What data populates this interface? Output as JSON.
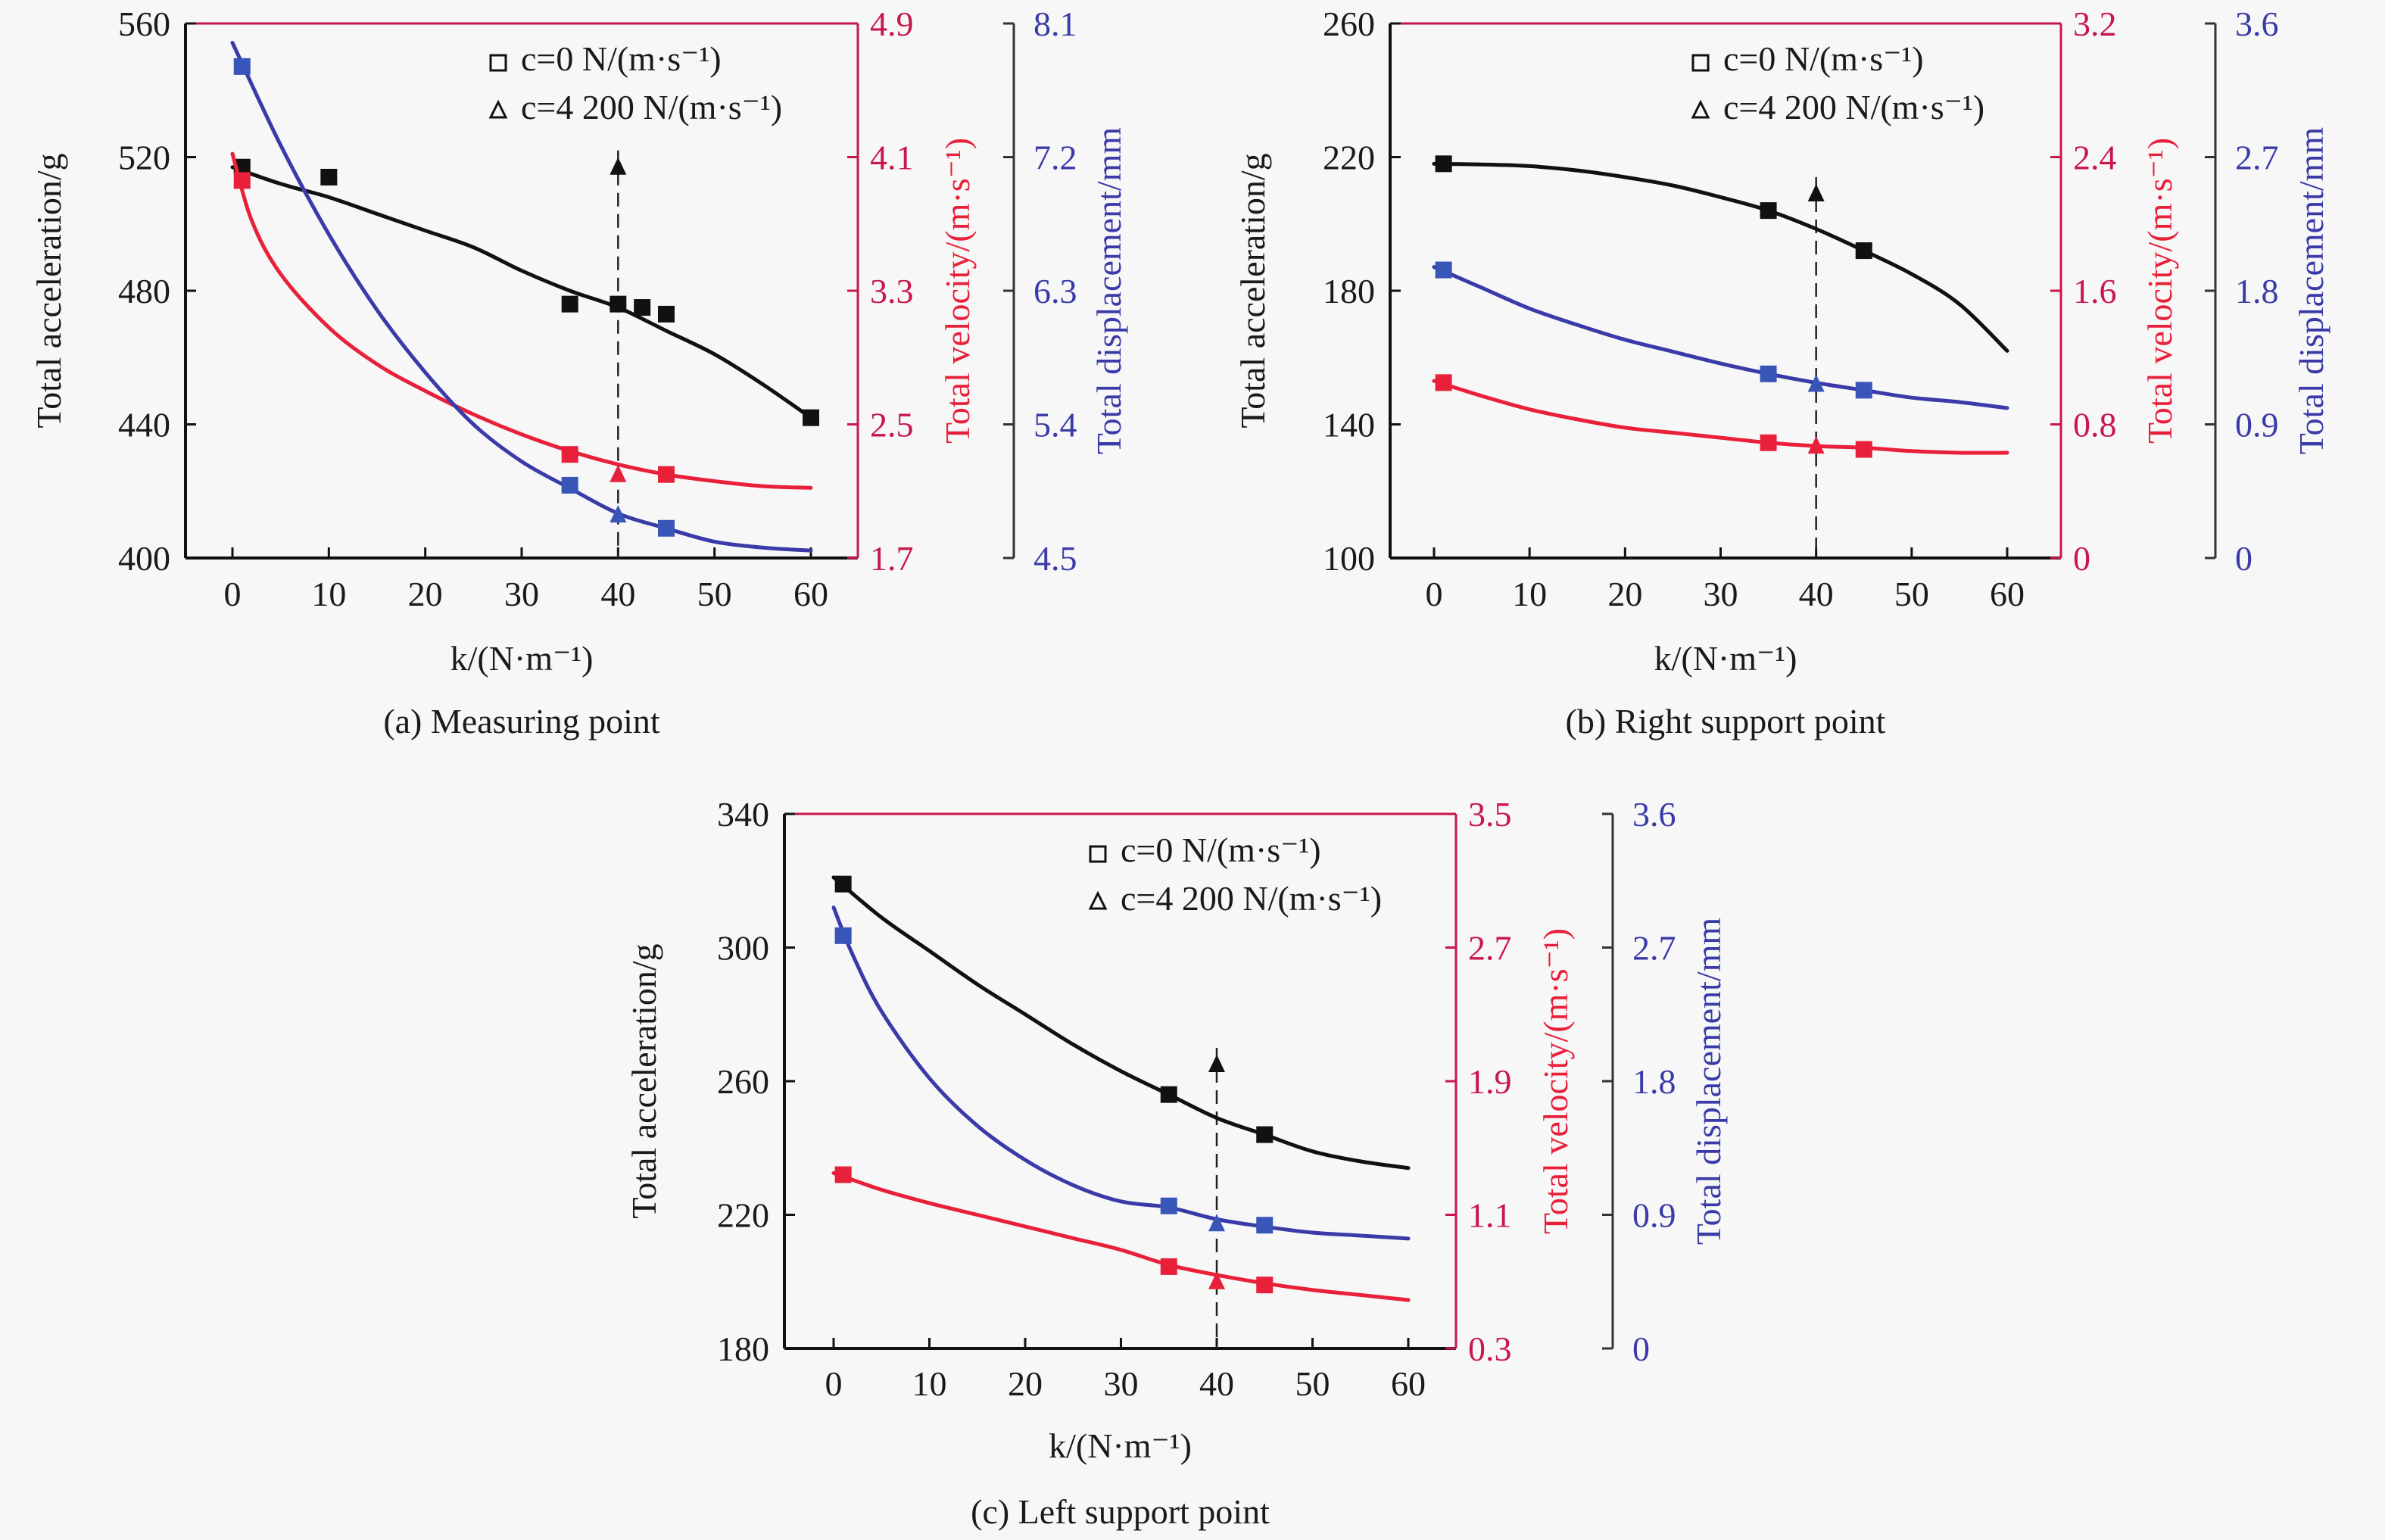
{
  "colors": {
    "acceleration": "#111111",
    "velocity": "#e8203a",
    "velocity_axis": "#c8174a",
    "displacement": "#3a3aa8",
    "displacement_marker": "#3856b8",
    "background": "#f7f7f7"
  },
  "legend": {
    "square_label": "c=0 N/(m·s⁻¹)",
    "triangle_label": "c=4 200 N/(m·s⁻¹)"
  },
  "chart_data": [
    {
      "id": "a",
      "type": "line",
      "title": "(a) Measuring point",
      "xlabel": "k/(N·m⁻¹)",
      "ylabel_left": "Total acceleration/g",
      "ylabel_right1": "Total velocity/(m·s⁻¹)",
      "ylabel_right2": "Total displacement/mm",
      "xlim": [
        0,
        60
      ],
      "xticks": [
        0,
        10,
        20,
        30,
        40,
        50,
        60
      ],
      "ylim_left": [
        400,
        560
      ],
      "yticks_left": [
        400,
        440,
        480,
        520,
        560
      ],
      "ylim_right1": [
        1.7,
        4.9
      ],
      "yticks_right1": [
        1.7,
        2.5,
        3.3,
        4.1,
        4.9
      ],
      "ylim_right2": [
        4.5,
        8.1
      ],
      "yticks_right2": [
        4.5,
        5.4,
        6.3,
        7.2,
        8.1
      ],
      "dashed_marker_x": 40,
      "legend_position": "top-right",
      "series": [
        {
          "name": "Total acceleration",
          "axis": "left",
          "color_key": "acceleration",
          "curve": {
            "x": [
              0,
              5,
              10,
              15,
              20,
              25,
              30,
              35,
              40,
              45,
              50,
              55,
              60
            ],
            "y": [
              517,
              512,
              508,
              503,
              498,
              493,
              486,
              480,
              475,
              468,
              461,
              452,
              442
            ]
          },
          "squares": {
            "x": [
              1,
              10,
              35,
              40,
              42.5,
              45,
              60
            ],
            "y": [
              517,
              514,
              476,
              476,
              475,
              473,
              442
            ]
          },
          "triangles": {
            "x": [
              40
            ],
            "y": [
              517
            ]
          }
        },
        {
          "name": "Total velocity",
          "axis": "right1",
          "color_key": "velocity",
          "curve": {
            "x": [
              0,
              2,
              5,
              10,
              15,
              20,
              25,
              30,
              35,
              40,
              45,
              50,
              55,
              60
            ],
            "y": [
              4.12,
              3.72,
              3.4,
              3.08,
              2.86,
              2.7,
              2.56,
              2.44,
              2.34,
              2.26,
              2.2,
              2.16,
              2.13,
              2.12
            ]
          },
          "squares": {
            "x": [
              1,
              35,
              45
            ],
            "y": [
              3.96,
              2.32,
              2.2
            ]
          },
          "triangles": {
            "x": [
              40
            ],
            "y": [
              2.2
            ]
          }
        },
        {
          "name": "Total displacement",
          "axis": "right2",
          "color_key": "displacement",
          "curve": {
            "x": [
              0,
              5,
              10,
              15,
              20,
              25,
              30,
              35,
              40,
              45,
              50,
              55,
              60
            ],
            "y": [
              7.97,
              7.28,
              6.68,
              6.17,
              5.75,
              5.4,
              5.15,
              4.97,
              4.8,
              4.7,
              4.61,
              4.57,
              4.55
            ]
          },
          "squares": {
            "x": [
              1,
              35,
              45
            ],
            "y": [
              7.81,
              4.99,
              4.7
            ]
          },
          "triangles": {
            "x": [
              40
            ],
            "y": [
              4.79
            ]
          }
        }
      ]
    },
    {
      "id": "b",
      "type": "line",
      "title": "(b) Right support point",
      "xlabel": "k/(N·m⁻¹)",
      "ylabel_left": "Total acceleration/g",
      "ylabel_right1": "Total velocity/(m·s⁻¹)",
      "ylabel_right2": "Total displacement/mm",
      "xlim": [
        0,
        60
      ],
      "xticks": [
        0,
        10,
        20,
        30,
        40,
        50,
        60
      ],
      "ylim_left": [
        100,
        260
      ],
      "yticks_left": [
        100,
        140,
        180,
        220,
        260
      ],
      "ylim_right1": [
        0,
        3.2
      ],
      "yticks_right1": [
        0,
        0.8,
        1.6,
        2.4,
        3.2
      ],
      "ylim_right2": [
        0,
        3.6
      ],
      "yticks_right2": [
        0,
        0.9,
        1.8,
        2.7,
        3.6
      ],
      "dashed_marker_x": 40,
      "legend_position": "top-right",
      "series": [
        {
          "name": "Total acceleration",
          "axis": "left",
          "color_key": "acceleration",
          "curve": {
            "x": [
              0,
              5,
              10,
              15,
              20,
              25,
              30,
              35,
              40,
              45,
              50,
              55,
              60
            ],
            "y": [
              218,
              217.8,
              217.3,
              216,
              214,
              211.5,
              208,
              204,
              198.5,
              192,
              185,
              176,
              162
            ]
          },
          "squares": {
            "x": [
              1,
              35,
              45
            ],
            "y": [
              218,
              204,
              192
            ]
          },
          "triangles": {
            "x": [
              40
            ],
            "y": [
              209
            ]
          }
        },
        {
          "name": "Total velocity",
          "axis": "right1",
          "color_key": "velocity",
          "curve": {
            "x": [
              0,
              5,
              10,
              15,
              20,
              25,
              30,
              35,
              40,
              45,
              50,
              55,
              60
            ],
            "y": [
              1.06,
              0.97,
              0.89,
              0.83,
              0.78,
              0.75,
              0.72,
              0.69,
              0.67,
              0.66,
              0.64,
              0.63,
              0.63
            ]
          },
          "squares": {
            "x": [
              1,
              35,
              45
            ],
            "y": [
              1.05,
              0.69,
              0.65
            ]
          },
          "triangles": {
            "x": [
              40
            ],
            "y": [
              0.67
            ]
          }
        },
        {
          "name": "Total displacement",
          "axis": "right2",
          "color_key": "displacement",
          "curve": {
            "x": [
              0,
              5,
              10,
              15,
              20,
              25,
              30,
              35,
              40,
              45,
              50,
              55,
              60
            ],
            "y": [
              1.96,
              1.82,
              1.68,
              1.57,
              1.47,
              1.39,
              1.31,
              1.24,
              1.18,
              1.13,
              1.08,
              1.05,
              1.01
            ]
          },
          "squares": {
            "x": [
              1,
              35,
              45
            ],
            "y": [
              1.94,
              1.24,
              1.13
            ]
          },
          "triangles": {
            "x": [
              40
            ],
            "y": [
              1.17
            ]
          }
        }
      ]
    },
    {
      "id": "c",
      "type": "line",
      "title": "(c) Left support point",
      "xlabel": "k/(N·m⁻¹)",
      "ylabel_left": "Total acceleration/g",
      "ylabel_right1": "Total velocity/(m·s⁻¹)",
      "ylabel_right2": "Total displacement/mm",
      "xlim": [
        0,
        60
      ],
      "xticks": [
        0,
        10,
        20,
        30,
        40,
        50,
        60
      ],
      "ylim_left": [
        180,
        340
      ],
      "yticks_left": [
        180,
        220,
        260,
        300,
        340
      ],
      "ylim_right1": [
        0.3,
        3.5
      ],
      "yticks_right1": [
        0.3,
        1.1,
        1.9,
        2.7,
        3.5
      ],
      "ylim_right2": [
        0,
        3.6
      ],
      "yticks_right2": [
        0,
        0.9,
        1.8,
        2.7,
        3.6
      ],
      "dashed_marker_x": 40,
      "legend_position": "top-right",
      "series": [
        {
          "name": "Total acceleration",
          "axis": "left",
          "color_key": "acceleration",
          "curve": {
            "x": [
              0,
              5,
              10,
              15,
              20,
              25,
              30,
              35,
              40,
              45,
              50,
              55,
              60
            ],
            "y": [
              321,
              309,
              299,
              289,
              280,
              271,
              263,
              256,
              249,
              244,
              239,
              236,
              234
            ]
          },
          "squares": {
            "x": [
              1,
              35,
              45
            ],
            "y": [
              319,
              256,
              244
            ]
          },
          "triangles": {
            "x": [
              40
            ],
            "y": [
              265
            ]
          }
        },
        {
          "name": "Total velocity",
          "axis": "right1",
          "color_key": "velocity",
          "curve": {
            "x": [
              0,
              5,
              10,
              15,
              20,
              25,
              30,
              35,
              40,
              45,
              50,
              55,
              60
            ],
            "y": [
              1.35,
              1.25,
              1.17,
              1.1,
              1.03,
              0.96,
              0.89,
              0.8,
              0.74,
              0.69,
              0.65,
              0.62,
              0.59
            ]
          },
          "squares": {
            "x": [
              1,
              35,
              45
            ],
            "y": [
              1.34,
              0.79,
              0.68
            ]
          },
          "triangles": {
            "x": [
              40
            ],
            "y": [
              0.7
            ]
          }
        },
        {
          "name": "Total displacement",
          "axis": "right2",
          "color_key": "displacement",
          "curve": {
            "x": [
              0,
              2,
              5,
              10,
              15,
              20,
              25,
              30,
              35,
              40,
              45,
              50,
              55,
              60
            ],
            "y": [
              2.97,
              2.65,
              2.27,
              1.82,
              1.5,
              1.27,
              1.1,
              0.99,
              0.95,
              0.87,
              0.82,
              0.78,
              0.76,
              0.74
            ]
          },
          "squares": {
            "x": [
              1,
              35,
              45
            ],
            "y": [
              2.78,
              0.96,
              0.83
            ]
          },
          "triangles": {
            "x": [
              40
            ],
            "y": [
              0.84
            ]
          }
        }
      ]
    }
  ]
}
